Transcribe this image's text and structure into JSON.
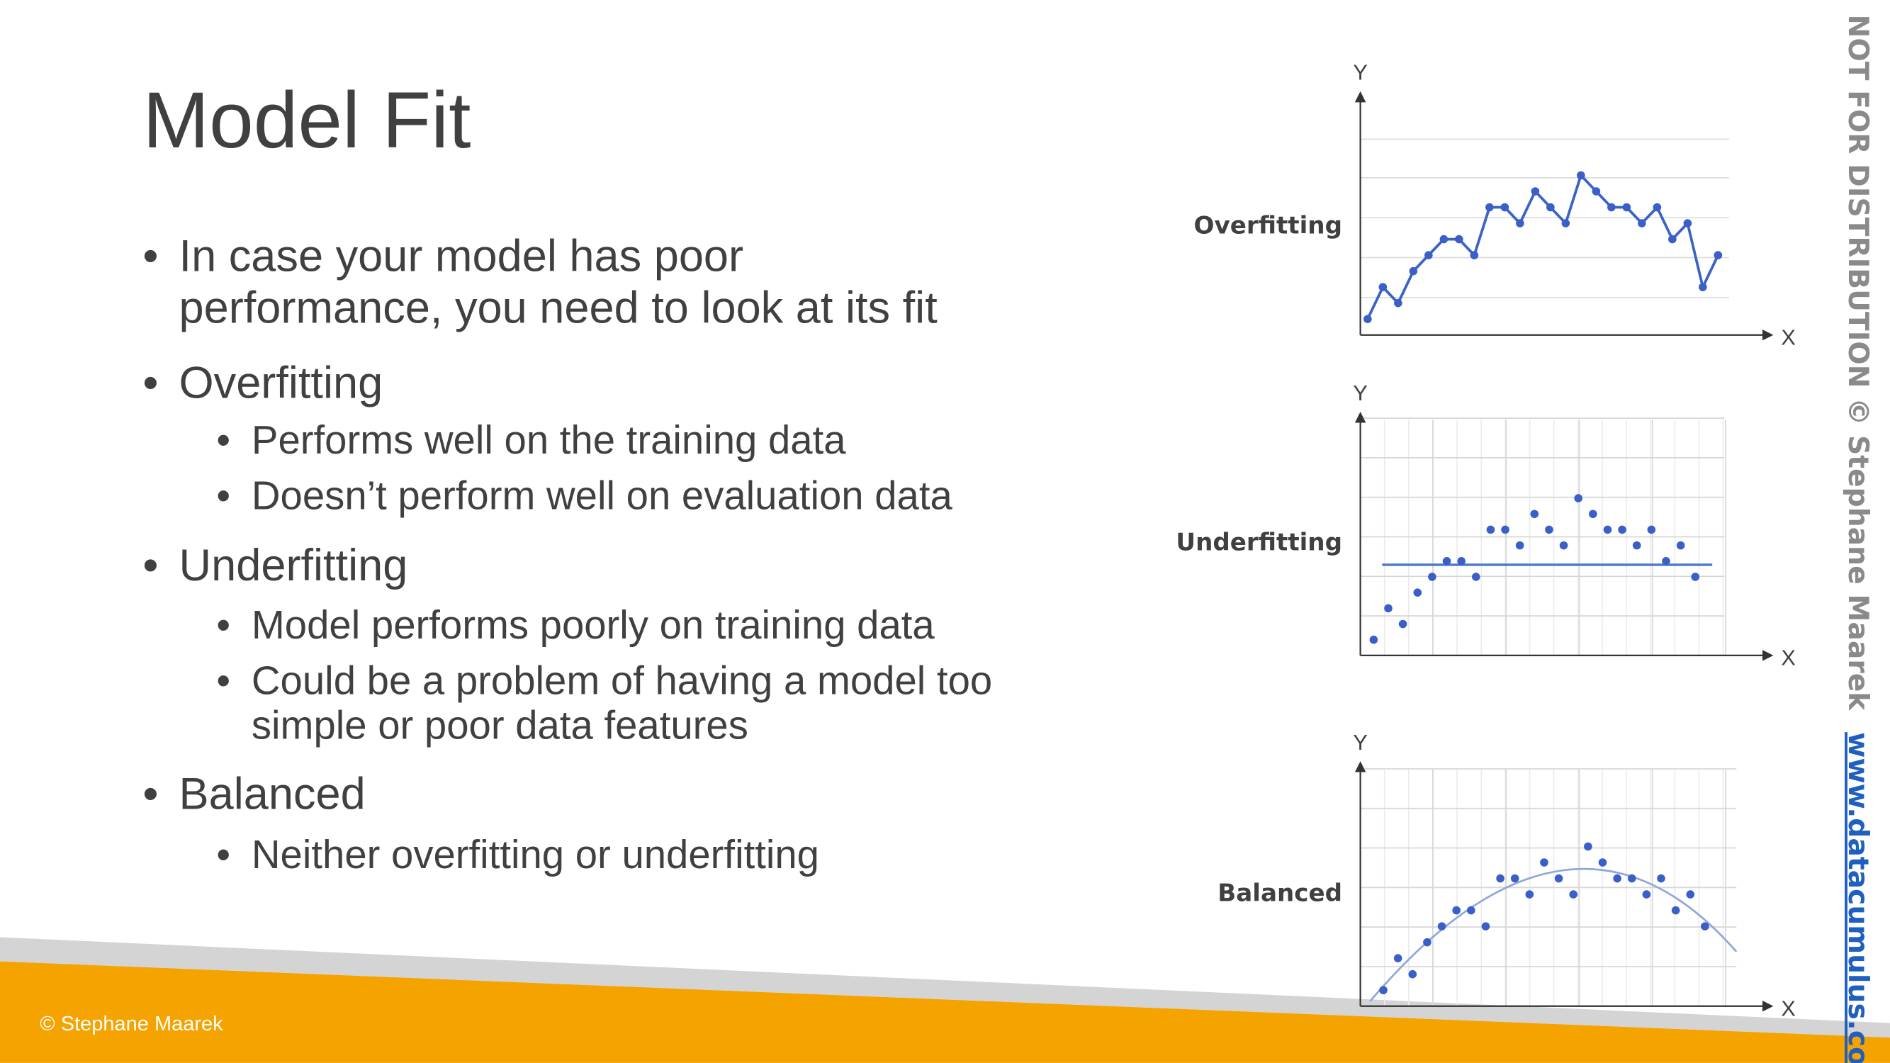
{
  "title": "Model Fit",
  "bullets": [
    {
      "lines": [
        "In case your model has poor",
        "performance, you need to look at its fit"
      ]
    },
    {
      "lines": [
        "Overfitting"
      ],
      "sub": [
        {
          "lines": [
            "Performs well on the training data"
          ]
        },
        {
          "lines": [
            "Doesn’t perform well on evaluation data"
          ]
        }
      ]
    },
    {
      "lines": [
        "Underfitting"
      ],
      "sub": [
        {
          "lines": [
            "Model performs poorly on training data"
          ]
        },
        {
          "lines": [
            "Could be a problem of having a model too",
            "simple or poor data features"
          ]
        }
      ]
    },
    {
      "lines": [
        "Balanced"
      ],
      "sub": [
        {
          "lines": [
            "Neither overfitting or underfitting"
          ]
        }
      ]
    }
  ],
  "charts": [
    {
      "label": "Overfitting",
      "x_label": "X",
      "y_label": "Y",
      "values": [
        1,
        3,
        2,
        4,
        5,
        6,
        6,
        5,
        8,
        8,
        7,
        9,
        8,
        7,
        10,
        9,
        8,
        8,
        7,
        8,
        6,
        7,
        3,
        5
      ]
    },
    {
      "label": "Underfitting",
      "x_label": "X",
      "y_label": "Y",
      "values": [
        1,
        3,
        2,
        4,
        5,
        6,
        6,
        5,
        8,
        8,
        7,
        9,
        8,
        7,
        10,
        9,
        8,
        8,
        7,
        8,
        6,
        7,
        5
      ]
    },
    {
      "label": "Balanced",
      "x_label": "X",
      "y_label": "Y",
      "values": [
        1,
        3,
        2,
        4,
        5,
        6,
        6,
        5,
        8,
        8,
        7,
        9,
        8,
        7,
        10,
        9,
        8,
        8,
        7,
        8,
        6,
        7,
        5
      ]
    }
  ],
  "side_note": "NOT FOR DISTRIBUTION © Stephane Maarek",
  "side_link": "www.datacumulus.com",
  "footer": "© Stephane Maarek"
}
